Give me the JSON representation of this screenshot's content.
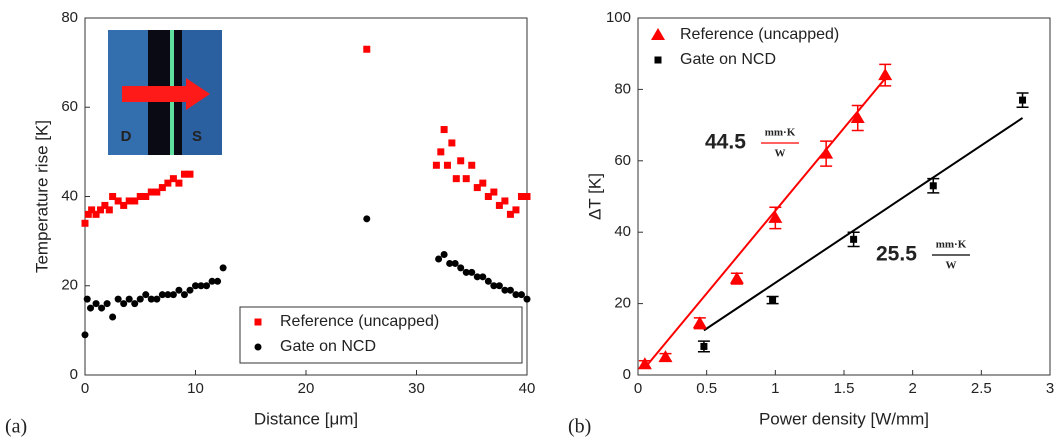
{
  "chart_data": [
    {
      "type": "scatter",
      "panel_label": "(a)",
      "xlabel": "Distance [μm]",
      "ylabel": "Temperature rise [K]",
      "xlim": [
        0,
        40
      ],
      "ylim": [
        0,
        80
      ],
      "xticks": [
        0,
        10,
        20,
        30,
        40
      ],
      "yticks": [
        0,
        20,
        40,
        60,
        80
      ],
      "legend": "lower right",
      "inset_labels": [
        "D",
        "S"
      ],
      "series": [
        {
          "name": "Reference (uncapped)",
          "color": "#ff0000",
          "marker": "square",
          "x": [
            0,
            0.3,
            0.6,
            1,
            1.4,
            1.8,
            2.2,
            2.5,
            3,
            3.5,
            4,
            4.5,
            5,
            5.5,
            6,
            6.5,
            7,
            7.5,
            8,
            8.5,
            9,
            9.5,
            25.5,
            31.8,
            32.2,
            32.5,
            32.8,
            33.2,
            33.6,
            34,
            34.5,
            35,
            35.5,
            36,
            36.5,
            37,
            37.5,
            38,
            38.5,
            39,
            39.5,
            40
          ],
          "values": [
            34,
            36,
            37,
            36,
            37,
            38,
            37,
            40,
            39,
            38,
            39,
            39,
            40,
            40,
            41,
            41,
            42,
            43,
            44,
            43,
            45,
            45,
            73,
            47,
            50,
            55,
            47,
            52,
            44,
            48,
            44,
            47,
            42,
            43,
            40,
            41,
            38,
            39,
            36,
            37,
            40,
            40
          ]
        },
        {
          "name": "Gate on NCD",
          "color": "#000000",
          "marker": "circle",
          "x": [
            0,
            0.2,
            0.5,
            1,
            1.5,
            2,
            2.5,
            3,
            3.5,
            4,
            4.5,
            5,
            5.5,
            6,
            6.5,
            7,
            7.5,
            8,
            8.5,
            9,
            9.5,
            10,
            10.5,
            11,
            11.5,
            12,
            12.5,
            25.5,
            32,
            32.5,
            33,
            33.5,
            34,
            34.5,
            35,
            35.5,
            36,
            36.5,
            37,
            37.5,
            38,
            38.5,
            39,
            39.5,
            40
          ],
          "values": [
            9,
            17,
            15,
            16,
            15,
            16,
            13,
            17,
            16,
            17,
            16,
            17,
            18,
            17,
            17,
            18,
            18,
            18,
            19,
            18,
            19,
            20,
            20,
            20,
            21,
            21,
            24,
            35,
            26,
            27,
            25,
            25,
            24,
            23,
            23,
            22,
            22,
            21,
            20,
            20,
            19,
            19,
            18,
            18,
            17
          ]
        }
      ]
    },
    {
      "type": "scatter",
      "panel_label": "(b)",
      "xlabel": "Power density [W/mm]",
      "ylabel": "ΔT [K]",
      "xlim": [
        0,
        3
      ],
      "ylim": [
        0,
        100
      ],
      "xticks": [
        0,
        0.5,
        1,
        1.5,
        2,
        2.5,
        3
      ],
      "yticks": [
        0,
        20,
        40,
        60,
        80,
        100
      ],
      "legend": "upper left",
      "series": [
        {
          "name": "Reference (uncapped)",
          "color": "#ff0000",
          "marker": "triangle",
          "x": [
            0.05,
            0.2,
            0.45,
            0.72,
            1.0,
            1.37,
            1.6,
            1.8
          ],
          "values": [
            3,
            5,
            14.5,
            27,
            44,
            62,
            72,
            84
          ],
          "errors": [
            1,
            1,
            1.5,
            1.5,
            3,
            3.5,
            3.5,
            3
          ]
        },
        {
          "name": "Gate on NCD",
          "color": "#000000",
          "marker": "square",
          "x": [
            0.48,
            0.98,
            1.57,
            2.15,
            2.8
          ],
          "values": [
            8,
            21,
            38,
            53,
            77
          ],
          "errors": [
            1.5,
            1,
            2,
            2,
            2
          ]
        }
      ],
      "fits": [
        {
          "color": "#ff0000",
          "x": [
            0.05,
            1.82
          ],
          "y": [
            2,
            84
          ]
        },
        {
          "color": "#000000",
          "x": [
            0.48,
            2.8
          ],
          "y": [
            12.5,
            72
          ]
        }
      ],
      "annotations": [
        {
          "text": "44.5",
          "numerator": "mm·K",
          "denominator": "W",
          "color": "#ff0000"
        },
        {
          "text": "25.5",
          "numerator": "mm·K",
          "denominator": "W",
          "color": "#000000"
        }
      ]
    }
  ]
}
